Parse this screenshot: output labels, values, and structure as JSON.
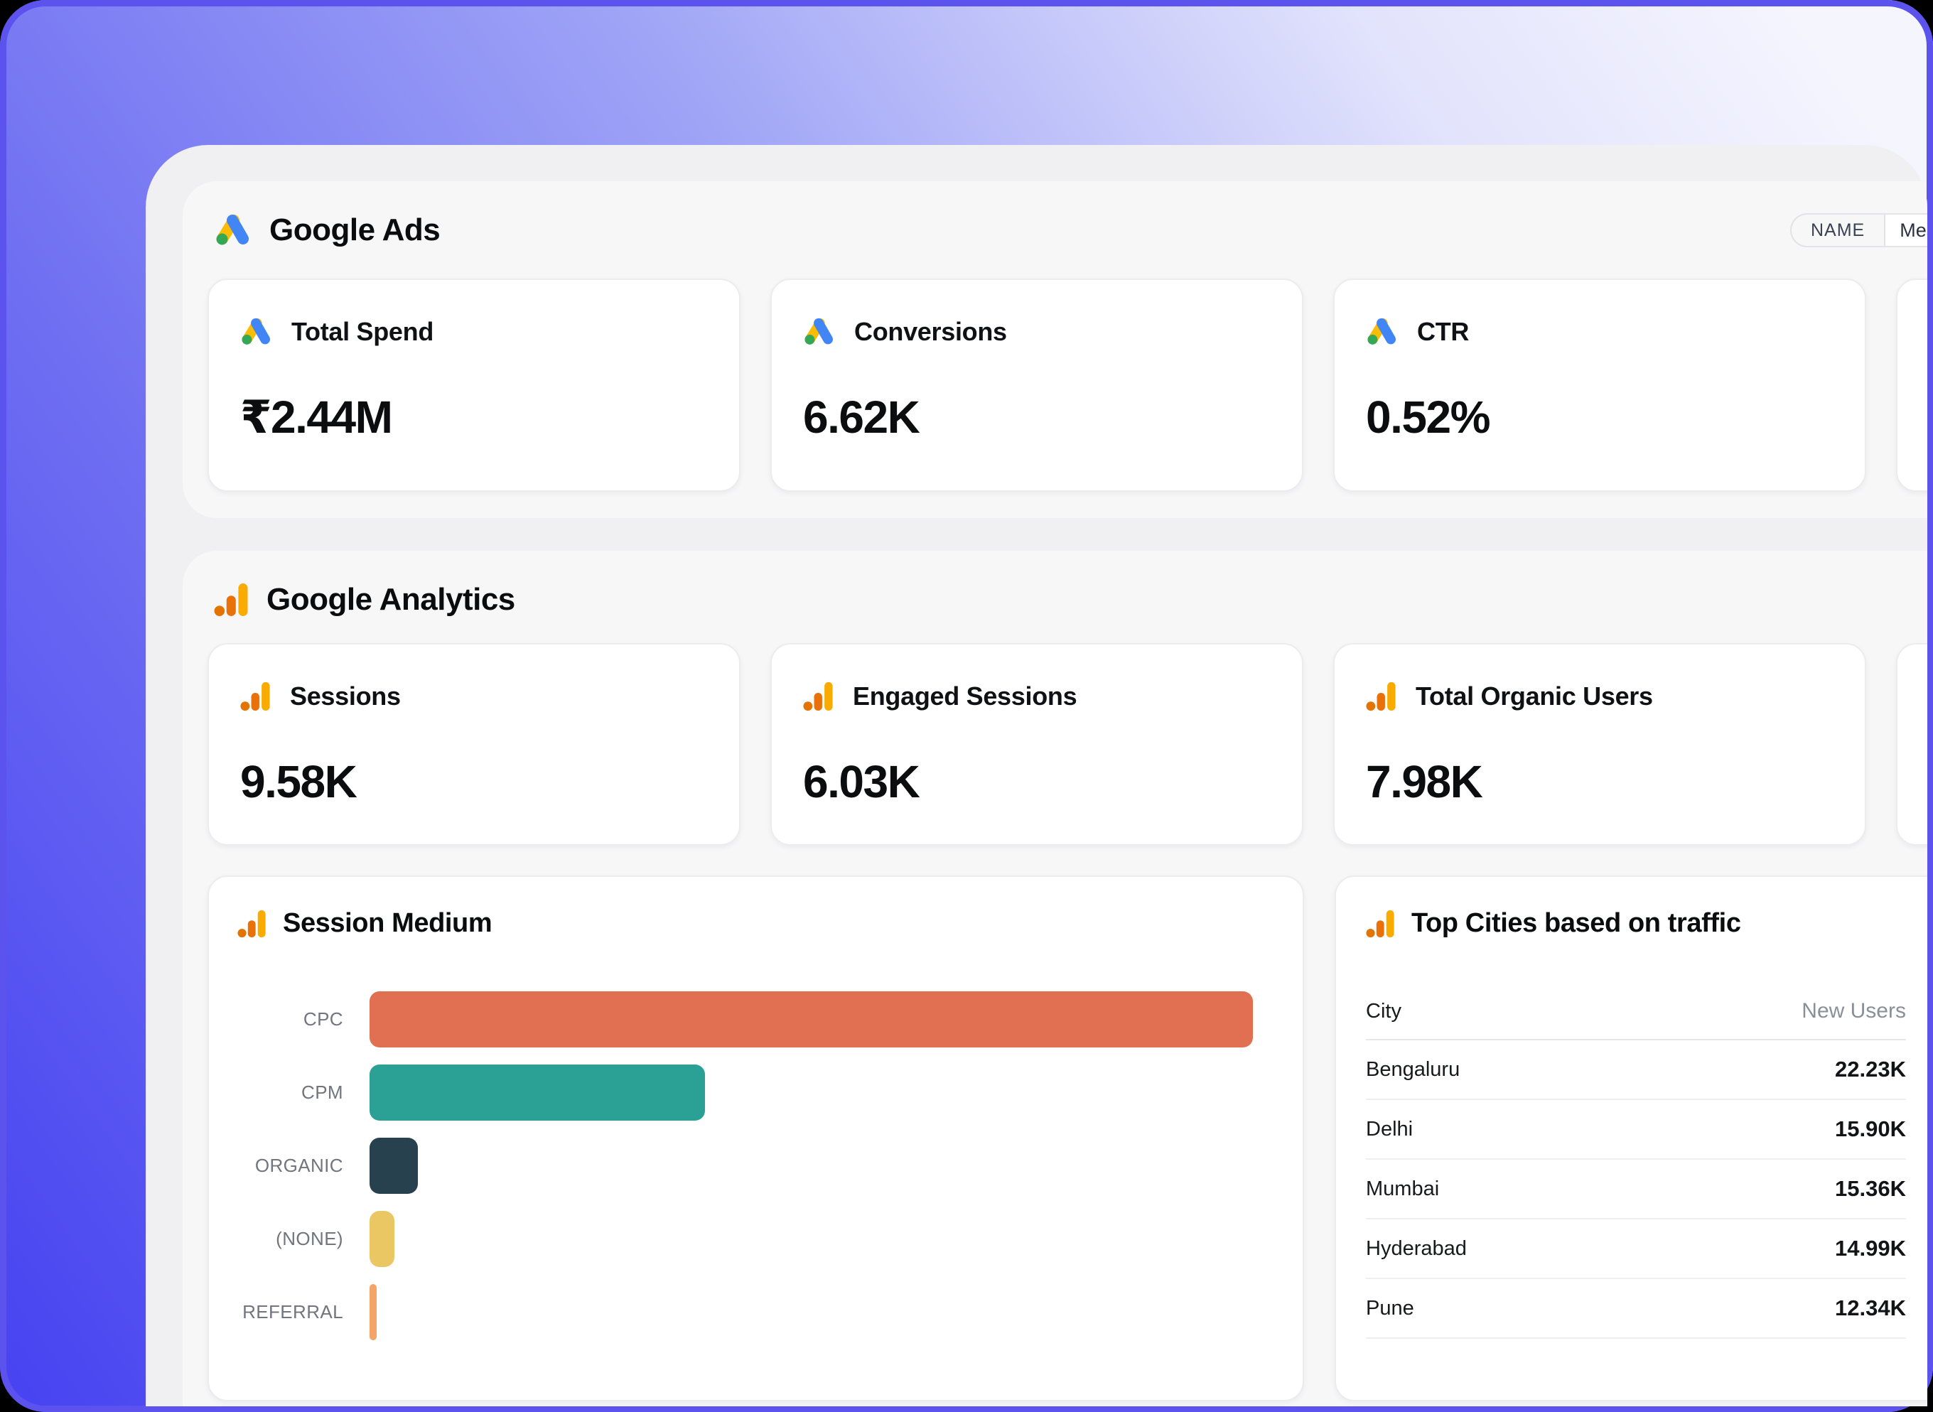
{
  "header_chip": {
    "key": "NAME",
    "value": "Mesa"
  },
  "sections": [
    {
      "id": "google-ads",
      "title": "Google Ads",
      "icon": "google-ads-icon",
      "cards": [
        {
          "label": "Total Spend",
          "value": "₹2.44M"
        },
        {
          "label": "Conversions",
          "value": "6.62K"
        },
        {
          "label": "CTR",
          "value": "0.52%"
        }
      ]
    },
    {
      "id": "google-analytics",
      "title": "Google Analytics",
      "icon": "google-analytics-icon",
      "cards": [
        {
          "label": "Sessions",
          "value": "9.58K"
        },
        {
          "label": "Engaged Sessions",
          "value": "6.03K"
        },
        {
          "label": "Total Organic Users",
          "value": "7.98K"
        }
      ]
    }
  ],
  "chart_data": {
    "type": "bar",
    "orientation": "horizontal",
    "title": "Session Medium",
    "categories": [
      "CPC",
      "CPM",
      "ORGANIC",
      "(NONE)",
      "REFERRAL"
    ],
    "values": [
      100,
      38,
      5.5,
      2.8,
      0.8
    ],
    "values_note": "bars are unlabeled; values estimated as percent of longest bar",
    "colors": [
      "#E16F51",
      "#2BA094",
      "#28414F",
      "#EAC763",
      "#F5A467"
    ],
    "xlabel": "",
    "ylabel": "",
    "grid": false,
    "legend": false
  },
  "top_cities": {
    "title": "Top Cities based on traffic",
    "columns": [
      "City",
      "New Users"
    ],
    "rows": [
      [
        "Bengaluru",
        "22.23K"
      ],
      [
        "Delhi",
        "15.90K"
      ],
      [
        "Mumbai",
        "15.36K"
      ],
      [
        "Hyderabad",
        "14.99K"
      ],
      [
        "Pune",
        "12.34K"
      ]
    ]
  },
  "colors": {
    "frame_stroke": "#5C53EF",
    "background_gradient": [
      "#4642F1",
      "#9FA4F6",
      "#F5F5FE"
    ],
    "panel_bg": "#F0F0F2",
    "section_bg": "#F7F7F8",
    "card_bg": "#FFFFFF",
    "ads_yellow": "#FBBC04",
    "ads_blue": "#4285F4",
    "ads_green": "#34A853",
    "ga_amber": "#F9AB00",
    "ga_orange": "#E8710A",
    "ga_deep_orange": "#E37400"
  }
}
